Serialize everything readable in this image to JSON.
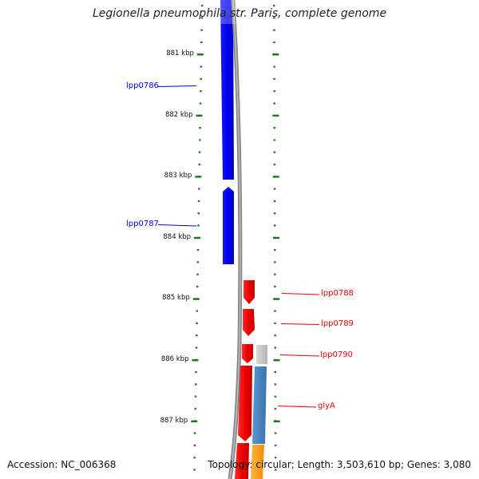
{
  "title": "Legionella pneumophila str. Paris, complete genome",
  "footer": {
    "accession": "Accession: NC_006368",
    "stats": "Topology: circular; Length: 3,503,610 bp; Genes: 3,080"
  },
  "ticks": [
    {
      "label": "881 kbp",
      "kbp": 881
    },
    {
      "label": "882 kbp",
      "kbp": 882
    },
    {
      "label": "883 kbp",
      "kbp": 883
    },
    {
      "label": "884 kbp",
      "kbp": 884
    },
    {
      "label": "885 kbp",
      "kbp": 885
    },
    {
      "label": "886 kbp",
      "kbp": 886
    },
    {
      "label": "887 kbp",
      "kbp": 887
    }
  ],
  "genes": [
    {
      "name": "lpp0786",
      "strand": "minus",
      "color": "#0000ee"
    },
    {
      "name": "lpp0787",
      "strand": "minus",
      "color": "#0000ee"
    },
    {
      "name": "lpp0788",
      "strand": "plus",
      "color": "#ee0000"
    },
    {
      "name": "lpp0789",
      "strand": "plus",
      "color": "#ee0000"
    },
    {
      "name": "lpp0790",
      "strand": "plus",
      "color": "#ee0000"
    },
    {
      "name": "glyA",
      "strand": "plus",
      "color": "#ee0000"
    }
  ],
  "colors": {
    "minus_strand": "#0000ee",
    "plus_strand": "#ee0000",
    "backbone": "#888888",
    "ticks": "#1a7a1a",
    "feature_blue": "#4a86c0",
    "feature_grey": "#c8c8c8",
    "feature_orange": "#f5a21c"
  }
}
